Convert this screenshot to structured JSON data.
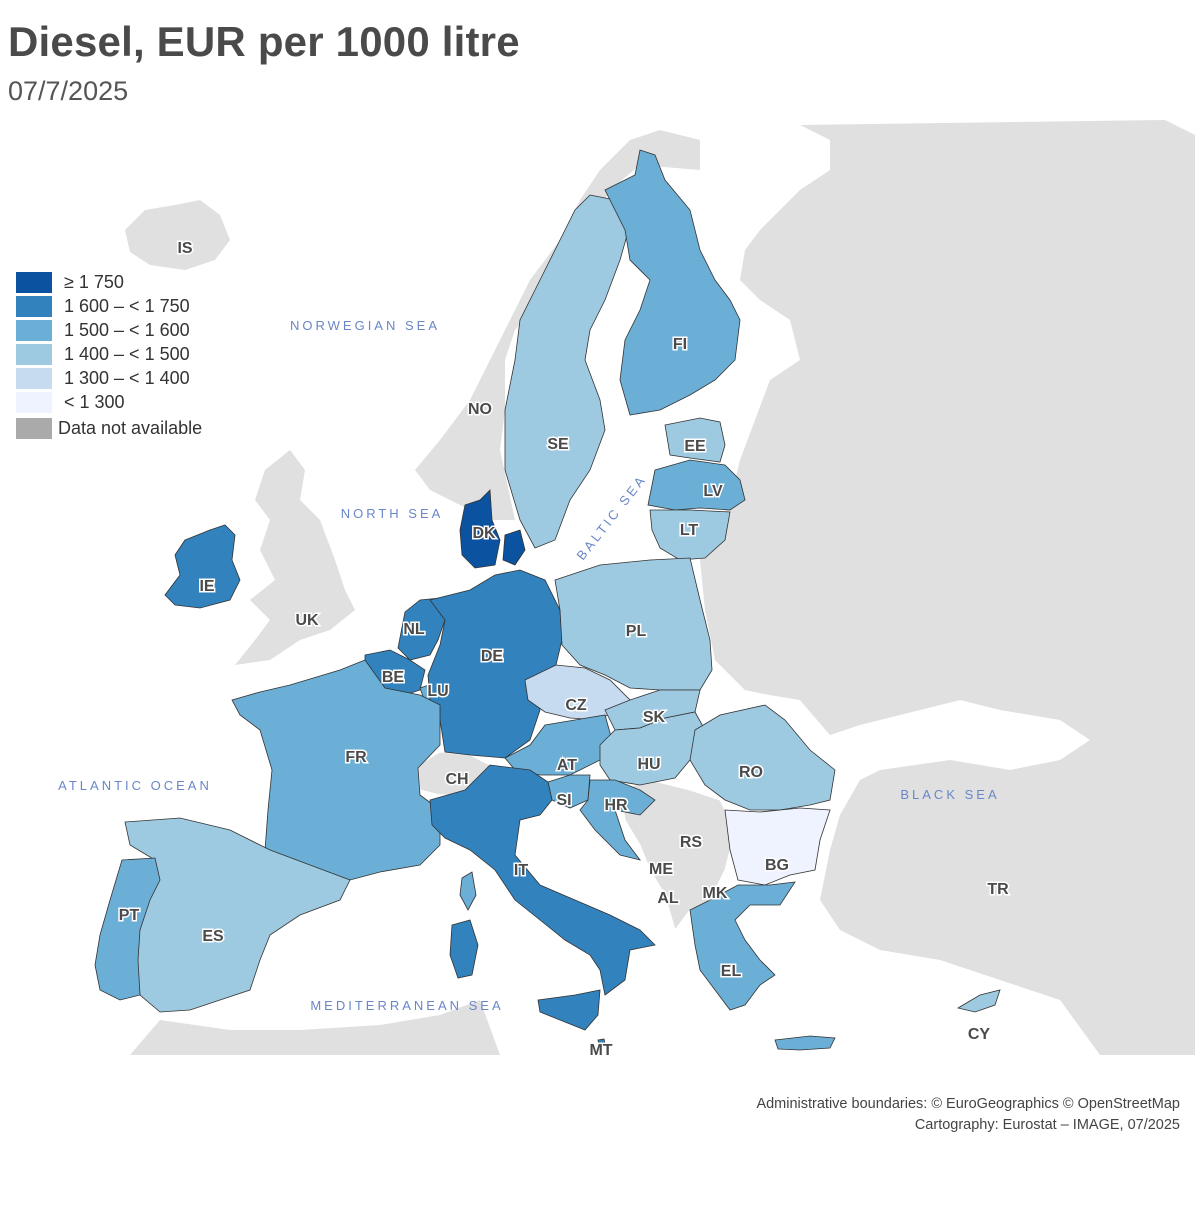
{
  "header": {
    "title": "Diesel, EUR per 1000 litre",
    "date": "07/7/2025"
  },
  "legend": {
    "classes": [
      {
        "label": "≥ 1 750",
        "color": "#0b52a0"
      },
      {
        "label": "1 600 – < 1 750",
        "color": "#3182bd"
      },
      {
        "label": "1 500 – < 1 600",
        "color": "#6baed6"
      },
      {
        "label": "1 400 – < 1 500",
        "color": "#9ecae1"
      },
      {
        "label": "1 300 – < 1 400",
        "color": "#c6dbef"
      },
      {
        "label": "< 1 300",
        "color": "#eff3ff"
      }
    ],
    "not_available": {
      "label": "Data not available",
      "color": "#aaaaaa"
    }
  },
  "seas": {
    "norwegian": "NORWEGIAN SEA",
    "north": "NORTH SEA",
    "baltic": "BALTIC SEA",
    "atlantic": "ATLANTIC OCEAN",
    "black": "BLACK SEA",
    "mediterranean": "MEDITERRANEAN SEA"
  },
  "countries": {
    "IS": {
      "code": "IS",
      "class": null
    },
    "NO": {
      "code": "NO",
      "class": null
    },
    "SE": {
      "code": "SE",
      "class": "1 400 – < 1 500"
    },
    "FI": {
      "code": "FI",
      "class": "1 500 – < 1 600"
    },
    "EE": {
      "code": "EE",
      "class": "1 400 – < 1 500"
    },
    "LV": {
      "code": "LV",
      "class": "1 500 – < 1 600"
    },
    "LT": {
      "code": "LT",
      "class": "1 400 – < 1 500"
    },
    "DK": {
      "code": "DK",
      "class": "≥ 1 750"
    },
    "IE": {
      "code": "IE",
      "class": "1 600 – < 1 750"
    },
    "UK": {
      "code": "UK",
      "class": null
    },
    "NL": {
      "code": "NL",
      "class": "1 600 – < 1 750"
    },
    "BE": {
      "code": "BE",
      "class": "1 600 – < 1 750"
    },
    "LU": {
      "code": "LU",
      "class": "1 500 – < 1 600"
    },
    "DE": {
      "code": "DE",
      "class": "1 600 – < 1 750"
    },
    "PL": {
      "code": "PL",
      "class": "1 400 – < 1 500"
    },
    "CZ": {
      "code": "CZ",
      "class": "1 300 – < 1 400"
    },
    "SK": {
      "code": "SK",
      "class": "1 400 – < 1 500"
    },
    "AT": {
      "code": "AT",
      "class": "1 500 – < 1 600"
    },
    "HU": {
      "code": "HU",
      "class": "1 400 – < 1 500"
    },
    "RO": {
      "code": "RO",
      "class": "1 400 – < 1 500"
    },
    "FR": {
      "code": "FR",
      "class": "1 500 – < 1 600"
    },
    "CH": {
      "code": "CH",
      "class": null
    },
    "SI": {
      "code": "SI",
      "class": "1 500 – < 1 600"
    },
    "HR": {
      "code": "HR",
      "class": "1 500 – < 1 600"
    },
    "RS": {
      "code": "RS",
      "class": null
    },
    "ME": {
      "code": "ME",
      "class": null
    },
    "AL": {
      "code": "AL",
      "class": null
    },
    "MK": {
      "code": "MK",
      "class": null
    },
    "BG": {
      "code": "BG",
      "class": "< 1 300"
    },
    "TR": {
      "code": "TR",
      "class": null
    },
    "IT": {
      "code": "IT",
      "class": "1 600 – < 1 750"
    },
    "PT": {
      "code": "PT",
      "class": "1 500 – < 1 600"
    },
    "ES": {
      "code": "ES",
      "class": "1 400 – < 1 500"
    },
    "EL": {
      "code": "EL",
      "class": "1 500 – < 1 600"
    },
    "MT": {
      "code": "MT",
      "class": "1 600 – < 1 750"
    },
    "CY": {
      "code": "CY",
      "class": "1 400 – < 1 500"
    }
  },
  "credits": {
    "boundaries": "Administrative boundaries: © EuroGeographics © OpenStreetMap",
    "cartography": "Cartography: Eurostat – IMAGE, 07/2025"
  }
}
